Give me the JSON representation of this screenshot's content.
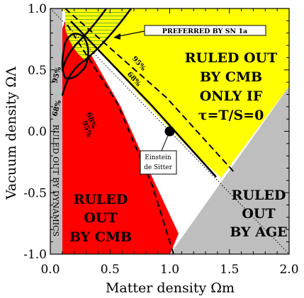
{
  "chart_data": {
    "type": "area",
    "xlabel": "Matter density Ωm",
    "ylabel": "Vacuum density ΩΛ",
    "xlim": [
      0.0,
      2.0
    ],
    "ylim": [
      -1.0,
      1.0
    ],
    "x_ticks": [
      "0.0",
      "0.5",
      "1.0",
      "1.5",
      "2.0"
    ],
    "y_ticks": [
      "1.0",
      "0.5",
      "0.0",
      "-0.5",
      "-1.0"
    ],
    "grid": false,
    "regions": {
      "cmb_tau": {
        "label_lines": [
          "RULED OUT",
          "BY CMB",
          "ONLY IF",
          "τ=T/S=0"
        ],
        "color": "#ffff00"
      },
      "cmb": {
        "label_lines": [
          "RULED",
          "OUT",
          "BY CMB"
        ],
        "color": "#ff0000"
      },
      "age": {
        "label_lines": [
          "RULED",
          "OUT",
          "BY AGE"
        ],
        "color": "#bebebe"
      },
      "dynamics": {
        "label": "RULED OUT BY DYNAMICS",
        "color": "#bebebe"
      }
    },
    "contour_labels": {
      "cmb": [
        "68%",
        "95%"
      ],
      "sn": [
        "68%",
        "95%"
      ],
      "sn_vertical": [
        "95%",
        "68%"
      ]
    },
    "preferred_sn": {
      "label": "PREFERRED BY SN 1a"
    },
    "point": {
      "label_lines": [
        "Einstein",
        "de Sitter"
      ],
      "x": 1.0,
      "y": 0.0
    },
    "flat_universe_line": {
      "from": [
        0.0,
        1.0
      ],
      "to": [
        2.0,
        -1.0
      ]
    }
  }
}
